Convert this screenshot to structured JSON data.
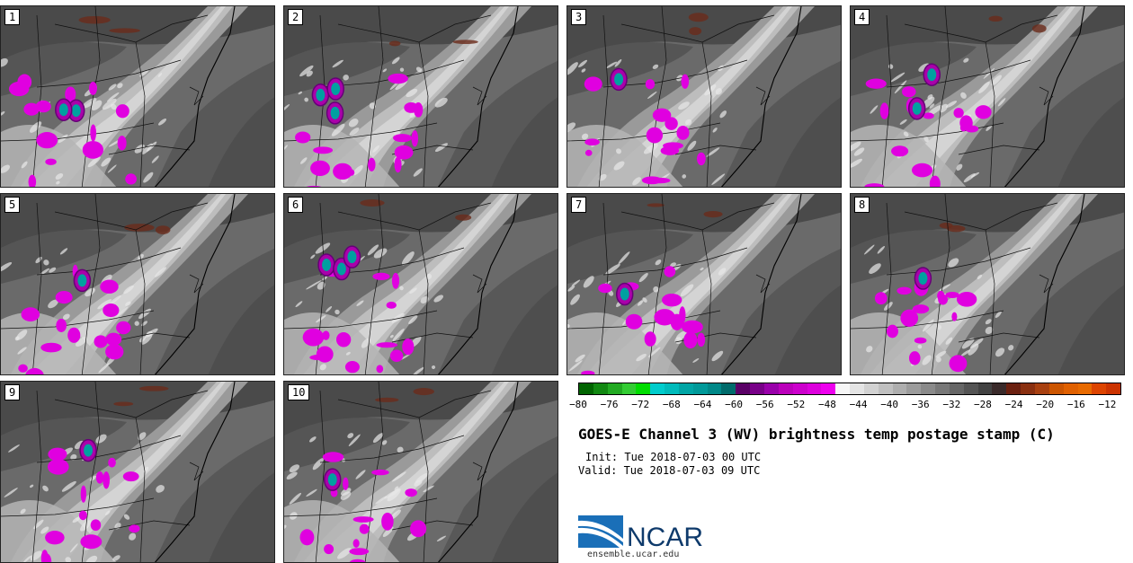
{
  "panels": [
    {
      "label": "1",
      "seed": 1,
      "cells": 2
    },
    {
      "label": "2",
      "seed": 2,
      "cells": 3
    },
    {
      "label": "3",
      "seed": 3,
      "cells": 1
    },
    {
      "label": "4",
      "seed": 4,
      "cells": 2
    },
    {
      "label": "5",
      "seed": 5,
      "cells": 1
    },
    {
      "label": "6",
      "seed": 6,
      "cells": 3
    },
    {
      "label": "7",
      "seed": 7,
      "cells": 1
    },
    {
      "label": "8",
      "seed": 8,
      "cells": 1
    },
    {
      "label": "9",
      "seed": 9,
      "cells": 1
    },
    {
      "label": "10",
      "seed": 10,
      "cells": 1
    }
  ],
  "colorbar": {
    "ticks": [
      "−80",
      "−76",
      "−72",
      "−68",
      "−64",
      "−60",
      "−56",
      "−52",
      "−48",
      "−44",
      "−40",
      "−36",
      "−32",
      "−28",
      "−24",
      "−20",
      "−16",
      "−12"
    ],
    "colors": [
      "#006400",
      "#118811",
      "#22aa22",
      "#33cc33",
      "#00dd00",
      "#00cccc",
      "#00bbbb",
      "#00a5a5",
      "#009999",
      "#008888",
      "#006b6b",
      "#5a0066",
      "#780088",
      "#9900aa",
      "#bb00bb",
      "#cc00cc",
      "#dd00dd",
      "#ee00ee",
      "#f6f6f6",
      "#e4e4e4",
      "#d2d2d2",
      "#c0c0c0",
      "#aeaeae",
      "#9c9c9c",
      "#8a8a8a",
      "#787878",
      "#666666",
      "#545454",
      "#424242",
      "#3a2a2a",
      "#6b2010",
      "#8a3010",
      "#a84010",
      "#cc5500",
      "#e06000",
      "#e86a00",
      "#dd4400",
      "#cc3300"
    ]
  },
  "title": "GOES-E Channel 3 (WV) brightness temp postage stamp (C)",
  "init": "Init: Tue 2018-07-03 00 UTC",
  "valid": "Valid: Tue 2018-07-03 09 UTC",
  "logo_text": "NCAR",
  "url": "ensemble.ucar.edu"
}
